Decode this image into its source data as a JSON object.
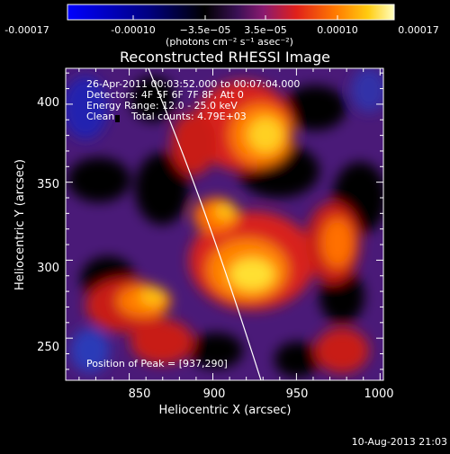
{
  "colorbar": {
    "ticks": [
      "-0.00017",
      "-0.00010",
      "−3.5e−05",
      "3.5e−05",
      "0.00010",
      "0.00017"
    ],
    "unit_label": "(photons cm⁻² s⁻¹ asec⁻²)",
    "colors": [
      "#0000ff",
      "#000000",
      "#3a1055",
      "#7a2a9e",
      "#e0201a",
      "#ff7a00",
      "#ffcc10",
      "#ffff90"
    ]
  },
  "title": "Reconstructed RHESSI Image",
  "annotation": {
    "time_range": "26-Apr-2011 00:03:52.000 to 00:07:04.000",
    "detectors": "Detectors: 4F 5F 6F 7F 8F, Att 0",
    "energy_range": "Energy Range: 12.0 - 25.0 keV",
    "method": "Clean",
    "counts": "Total counts: 4.79E+03",
    "peak": "Position of Peak = [937,290]"
  },
  "axes": {
    "xlabel": "Heliocentric X (arcsec)",
    "ylabel": "Heliocentric Y (arcsec)",
    "xticks": [
      850,
      900,
      950,
      1000
    ],
    "yticks": [
      250,
      300,
      350,
      400
    ],
    "xlim": [
      812,
      1002
    ],
    "ylim": [
      223,
      423
    ]
  },
  "footer": {
    "timestamp": "10-Aug-2013 21:03"
  }
}
